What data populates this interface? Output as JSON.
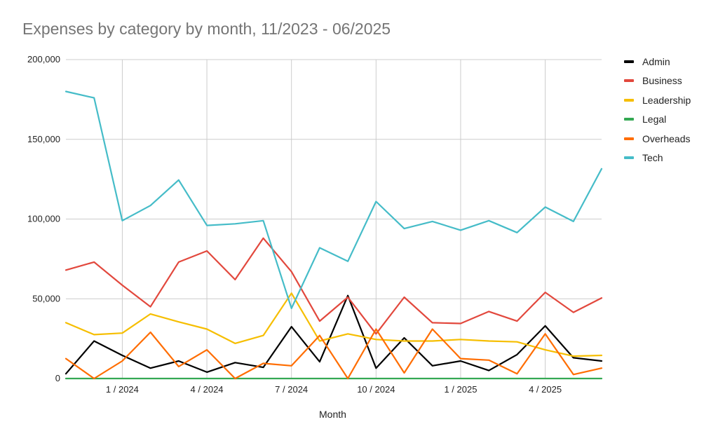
{
  "chart_data": {
    "type": "line",
    "title": "Expenses by category by month, 11/2023 - 06/2025",
    "xlabel": "Month",
    "ylabel": "",
    "ylim": [
      0,
      200000
    ],
    "y_ticks": [
      "0",
      "50,000",
      "100,000",
      "150,000",
      "200,000"
    ],
    "y_tick_values": [
      0,
      50000,
      100000,
      150000,
      200000
    ],
    "x_tick_labels": [
      "1 / 2024",
      "4 / 2024",
      "7 / 2024",
      "10 / 2024",
      "1 / 2025",
      "4 / 2025"
    ],
    "x_tick_indices": [
      2,
      5,
      8,
      11,
      14,
      17
    ],
    "categories": [
      "11/2023",
      "12/2023",
      "1/2024",
      "2/2024",
      "3/2024",
      "4/2024",
      "5/2024",
      "6/2024",
      "7/2024",
      "8/2024",
      "9/2024",
      "10/2024",
      "11/2024",
      "12/2024",
      "1/2025",
      "2/2025",
      "3/2025",
      "4/2025",
      "5/2025",
      "6/2025"
    ],
    "legend_position": "right",
    "grid": true,
    "series": [
      {
        "name": "Admin",
        "color": "#000000",
        "values": [
          3000,
          23500,
          14500,
          6500,
          11000,
          4000,
          10000,
          7000,
          32500,
          10500,
          52000,
          6500,
          25500,
          8000,
          11000,
          5000,
          15000,
          33000,
          13000,
          11000
        ]
      },
      {
        "name": "Business",
        "color": "#E2483D",
        "values": [
          68000,
          73000,
          58500,
          45000,
          73000,
          80000,
          62000,
          88000,
          67000,
          36000,
          51000,
          28000,
          51000,
          35000,
          34500,
          42000,
          36000,
          54000,
          41500,
          50500
        ]
      },
      {
        "name": "Leadership",
        "color": "#F6BE00",
        "values": [
          35000,
          27500,
          28500,
          40500,
          35500,
          31000,
          22000,
          27000,
          53500,
          23500,
          28000,
          24500,
          23500,
          23500,
          24500,
          23500,
          23000,
          18000,
          14000,
          14500
        ]
      },
      {
        "name": "Legal",
        "color": "#34A853",
        "values": [
          0,
          0,
          0,
          0,
          0,
          0,
          0,
          0,
          0,
          0,
          0,
          0,
          0,
          0,
          0,
          0,
          0,
          0,
          0,
          0
        ]
      },
      {
        "name": "Overheads",
        "color": "#FF6D00",
        "values": [
          12500,
          0,
          11000,
          29000,
          7500,
          18000,
          0,
          9500,
          8000,
          27000,
          0,
          31000,
          3500,
          31000,
          12500,
          11500,
          3000,
          28000,
          2500,
          6500
        ]
      },
      {
        "name": "Tech",
        "color": "#45BCC8",
        "values": [
          180000,
          176000,
          99000,
          108500,
          124500,
          96000,
          97000,
          99000,
          44000,
          82000,
          73500,
          111000,
          94000,
          98500,
          93000,
          99000,
          91500,
          107500,
          98500,
          131500
        ]
      }
    ]
  }
}
